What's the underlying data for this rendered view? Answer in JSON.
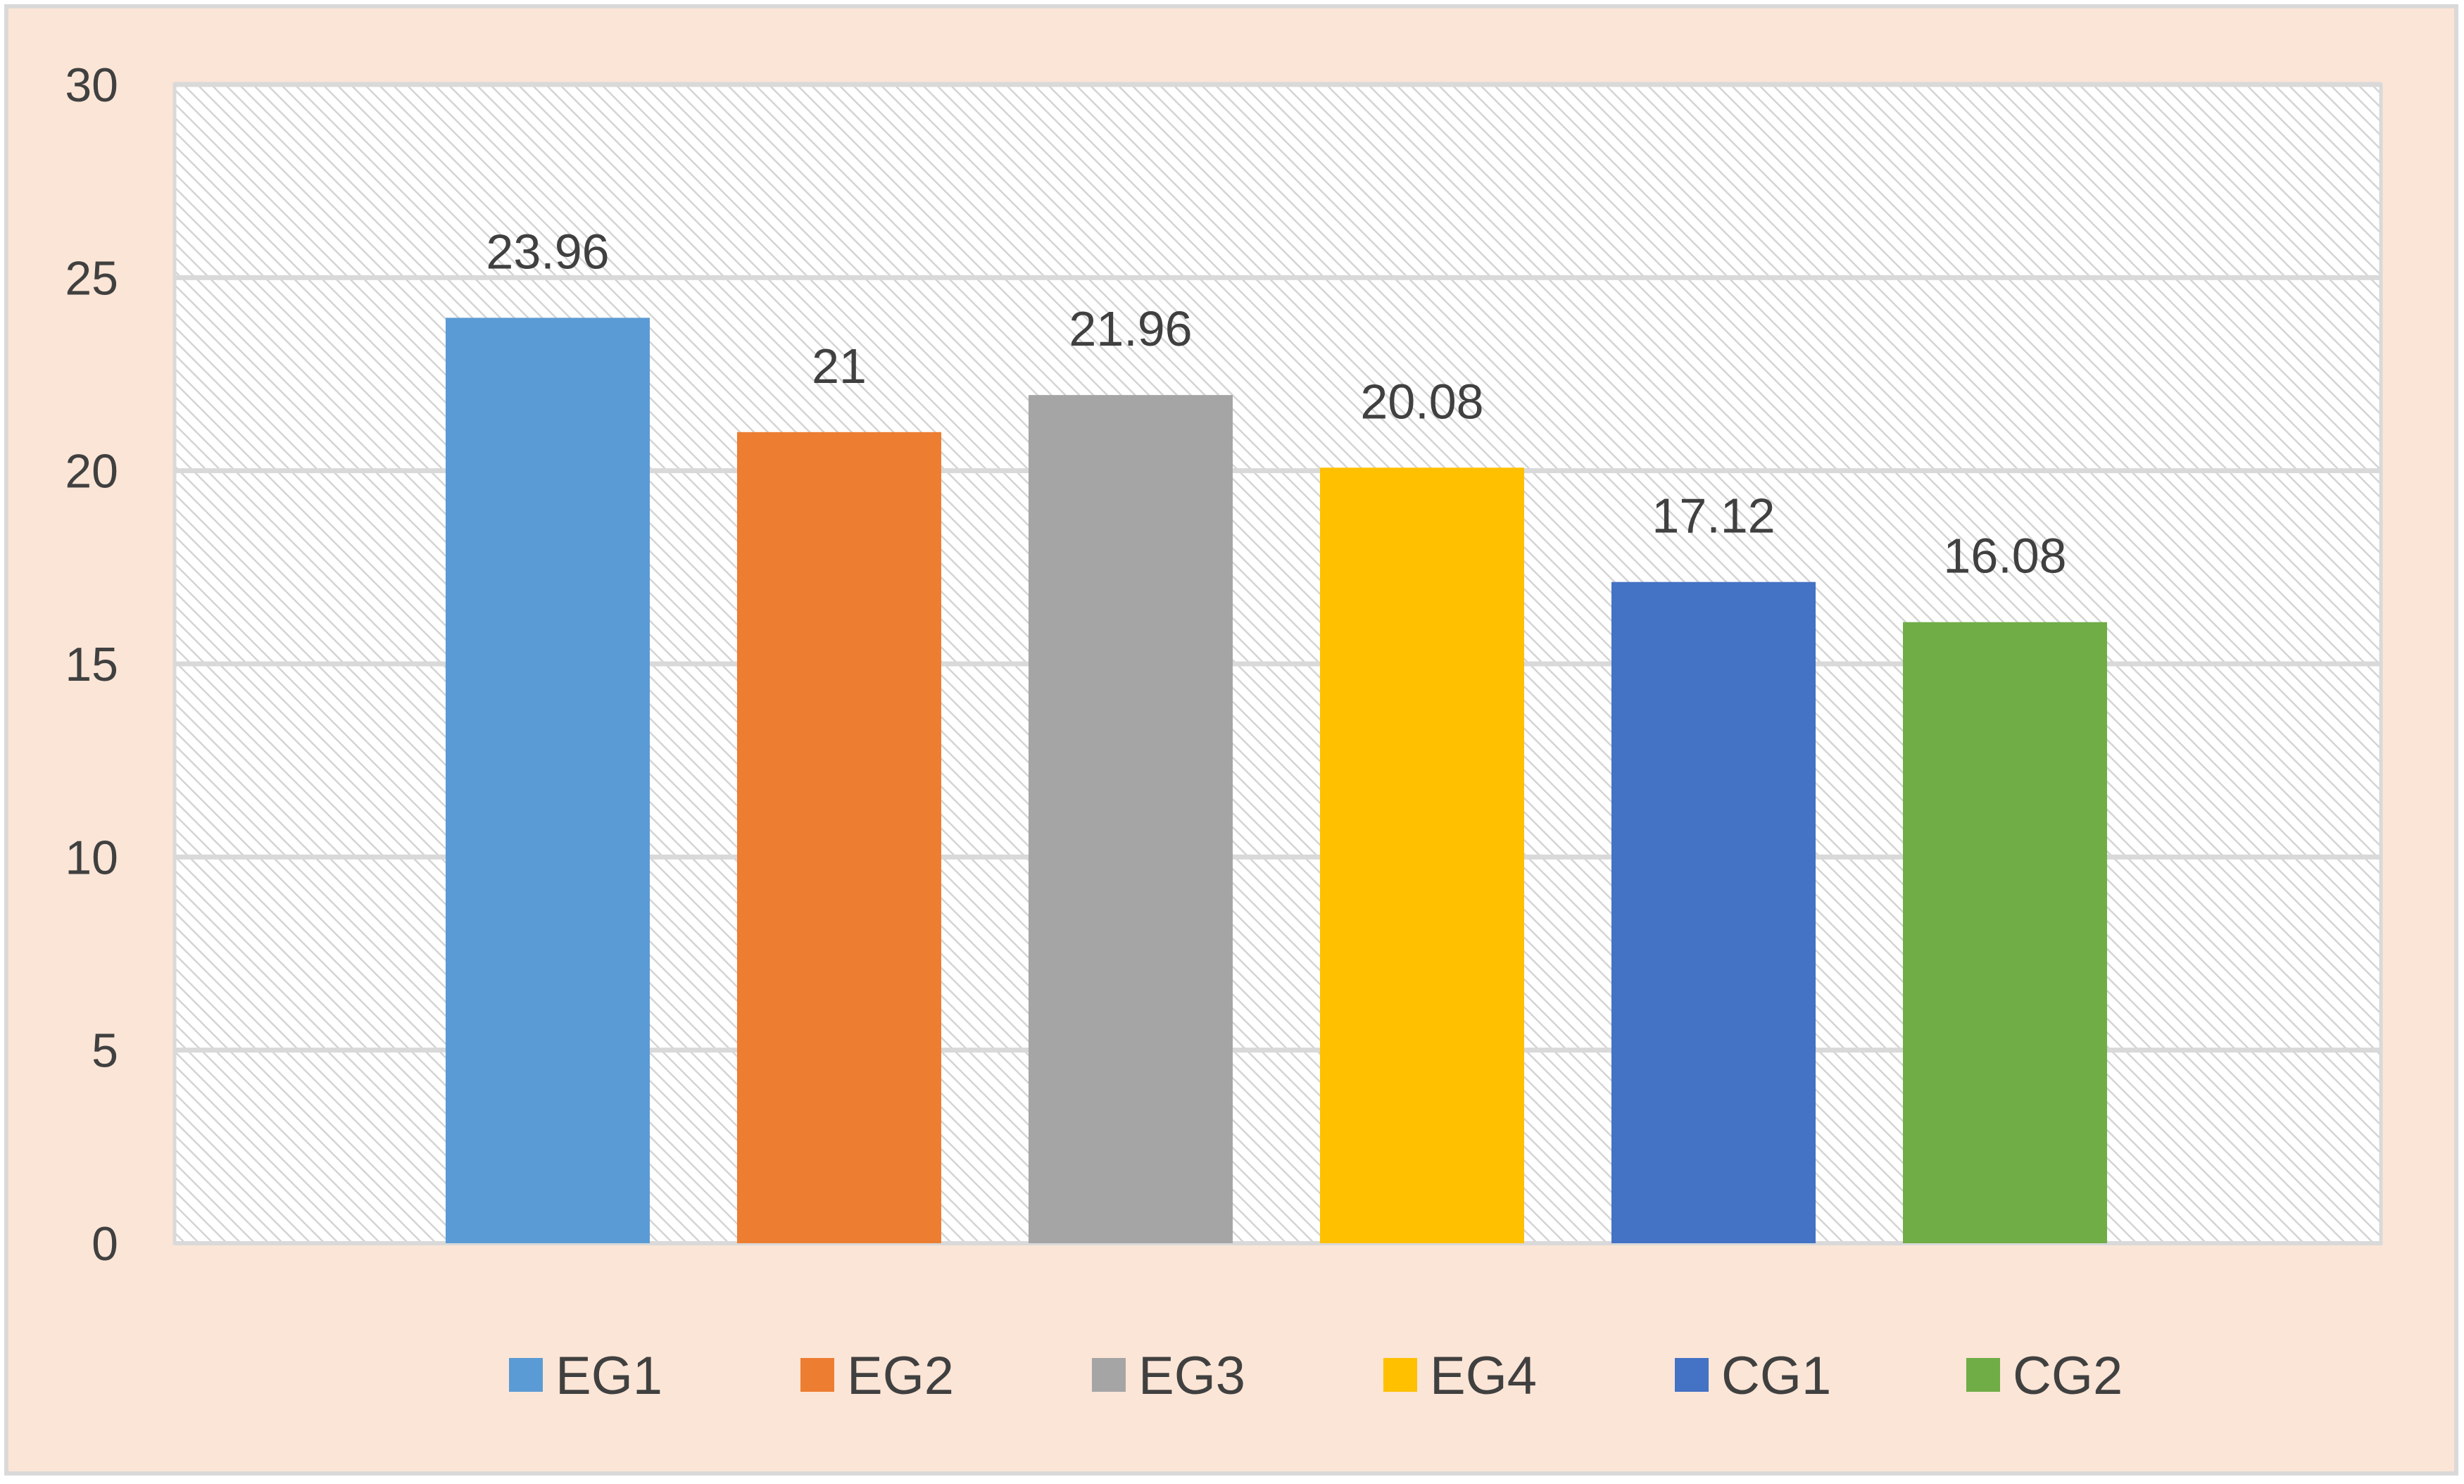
{
  "chart_data": {
    "type": "bar",
    "title": "",
    "xlabel": "",
    "ylabel": "",
    "categories": [
      "EG1",
      "EG2",
      "EG3",
      "EG4",
      "CG1",
      "CG2"
    ],
    "values": [
      23.96,
      21,
      21.96,
      20.08,
      17.12,
      16.08
    ],
    "value_labels": [
      "23.96",
      "21",
      "21.96",
      "20.08",
      "17.12",
      "16.08"
    ],
    "colors": [
      "#5b9bd5",
      "#ed7d31",
      "#a5a5a5",
      "#ffc000",
      "#4472c4",
      "#70ad47"
    ],
    "ylim": [
      0,
      30
    ],
    "yticks": [
      0,
      5,
      10,
      15,
      20,
      25,
      30
    ],
    "grid": true,
    "legend": {
      "position": "bottom",
      "entries": [
        "EG1",
        "EG2",
        "EG3",
        "EG4",
        "CG1",
        "CG2"
      ]
    },
    "background": "#fbe5d6",
    "plot_background": "hatched"
  }
}
